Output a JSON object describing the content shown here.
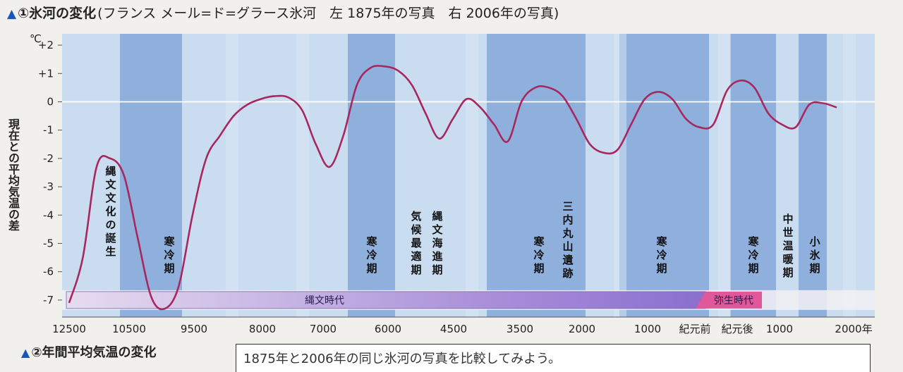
{
  "title": {
    "marker": "▲",
    "main": "①氷河の変化",
    "subtitle": "(フランス メール=ド=グラース氷河　左 1875年の写真　右 2006年の写真)"
  },
  "colors": {
    "curve": "#a8275e",
    "cold_band": "#8fb0dc",
    "warm_band": "#c9dcf0",
    "jomon_bar": "#8a6fcf",
    "yayoi_bar": "#e0589a"
  },
  "chart_data": {
    "type": "line",
    "title": "",
    "ylabel": "現在との平均気温の差",
    "yunit": "℃",
    "ylim": [
      -7.6,
      2.4
    ],
    "yticks": [
      {
        "value": 2,
        "label": "+2"
      },
      {
        "value": 1,
        "label": "+1"
      },
      {
        "value": 0,
        "label": "0"
      },
      {
        "value": -1,
        "label": "-1"
      },
      {
        "value": -2,
        "label": "-2"
      },
      {
        "value": -3,
        "label": "-3"
      },
      {
        "value": -4,
        "label": "-4"
      },
      {
        "value": -5,
        "label": "-5"
      },
      {
        "value": -6,
        "label": "-6"
      },
      {
        "value": -7,
        "label": "-7"
      }
    ],
    "xticks": [
      "12500",
      "10500",
      "9500",
      "8000",
      "7000",
      "6000",
      "4500",
      "3500",
      "2000",
      "1000",
      "紀元前",
      "紀元後",
      "1000",
      "2000年"
    ],
    "grid": "horizontal zero line",
    "series": [
      {
        "values": [
          -7.1,
          -5.5,
          -2.3,
          -2.0,
          -2.6,
          -4.8,
          -6.9,
          -7.3,
          -6.5,
          -4.0,
          -2.0,
          -1.2,
          -0.5,
          -0.1,
          0.1,
          0.2,
          0.15,
          -0.3,
          -1.5,
          -2.3,
          -1.2,
          0.6,
          1.2,
          1.25,
          1.1,
          0.6,
          -0.4,
          -1.3,
          -0.6,
          0.1,
          -0.2,
          -0.8,
          -1.4,
          0.0,
          0.5,
          0.5,
          0.2,
          -0.6,
          -1.5,
          -1.8,
          -1.7,
          -0.8,
          0.1,
          0.35,
          0.1,
          -0.6,
          -0.9,
          -0.8,
          0.4,
          0.75,
          0.5,
          -0.4,
          -0.8,
          -0.9,
          -0.1,
          -0.05,
          -0.2
        ]
      }
    ],
    "annotations": [
      {
        "text": "縄文文化の誕生"
      },
      {
        "text": "寒冷期"
      },
      {
        "text": "寒冷期"
      },
      {
        "text": "気候最適期"
      },
      {
        "text": "縄文海進期"
      },
      {
        "text": "寒冷期"
      },
      {
        "text": "三内丸山遺跡"
      },
      {
        "text": "寒冷期"
      },
      {
        "text": "寒冷期"
      },
      {
        "text": "中世温暖期"
      },
      {
        "text": "小氷期"
      }
    ],
    "periods": [
      {
        "label": "縄文時代"
      },
      {
        "label": "弥生時代"
      }
    ]
  },
  "section2": {
    "marker": "▲",
    "title": "②年間平均気温の変化"
  },
  "note": "1875年と2006年の同じ氷河の写真を比較してみよう。"
}
